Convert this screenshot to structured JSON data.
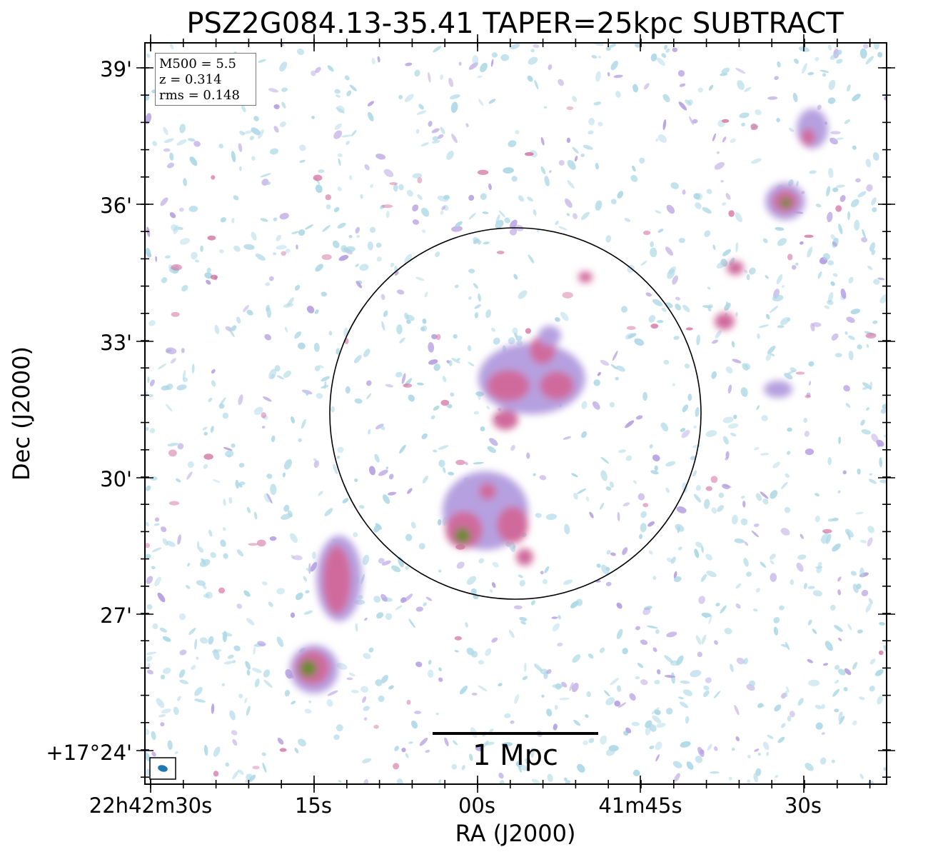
{
  "figure": {
    "title": "PSZ2G084.13-35.41 TAPER=25kpc SUBTRACT",
    "x_axis_label": "RA (J2000)",
    "y_axis_label": "Dec (J2000)",
    "ra_tick_labels": [
      "22h42m30s",
      "15s",
      "00s",
      "41m45s",
      "30s"
    ],
    "dec_tick_labels": [
      "39'",
      "36'",
      "33'",
      "30'",
      "27'",
      "+17°24'"
    ],
    "info": {
      "mass_line": "M500 = 5.5",
      "redshift_line": "z = 0.314",
      "rms_line": "rms = 0.148"
    },
    "scale_bar_label": "1 Mpc",
    "colors": {
      "noise_faint": "#add8e6",
      "noise_mid": "#b6a0e0",
      "emission": "#d06a9c",
      "peak": "#6a8a2a",
      "beam": "#1f77b4"
    }
  }
}
